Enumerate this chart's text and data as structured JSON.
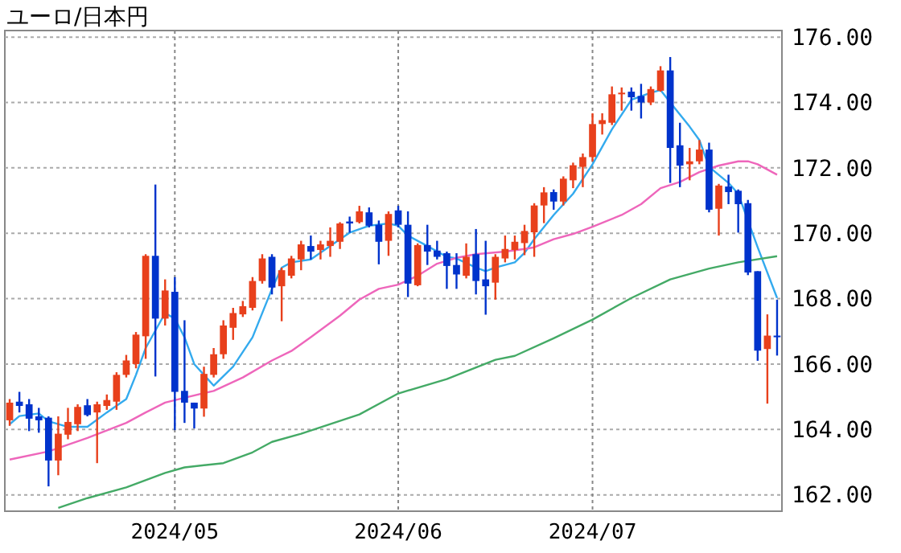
{
  "chart_data": {
    "type": "candlestick",
    "title": "ユーロ/日本円",
    "categories": [
      null,
      null,
      null,
      null,
      null,
      null,
      null,
      null,
      null,
      null,
      null,
      null,
      null,
      null,
      null,
      null,
      null,
      "2024/05",
      null,
      null,
      null,
      null,
      null,
      null,
      null,
      null,
      null,
      null,
      null,
      null,
      null,
      null,
      null,
      null,
      null,
      null,
      null,
      null,
      null,
      null,
      "2024/06",
      null,
      null,
      null,
      null,
      null,
      null,
      null,
      null,
      null,
      null,
      null,
      null,
      null,
      null,
      null,
      null,
      null,
      null,
      null,
      "2024/07",
      null,
      null,
      null,
      null,
      null,
      null,
      null,
      null,
      null,
      null,
      null,
      null,
      null,
      null,
      null,
      null,
      null,
      null,
      null
    ],
    "ohlc": [
      [
        164.28,
        164.93,
        164.11,
        164.82
      ],
      [
        164.85,
        165.15,
        164.52,
        164.72
      ],
      [
        164.77,
        164.93,
        163.95,
        164.33
      ],
      [
        164.4,
        164.66,
        163.9,
        164.28
      ],
      [
        164.36,
        164.4,
        162.26,
        163.05
      ],
      [
        163.05,
        164.4,
        162.6,
        163.87
      ],
      [
        163.84,
        164.66,
        163.7,
        164.23
      ],
      [
        164.16,
        164.77,
        163.95,
        164.69
      ],
      [
        164.74,
        164.93,
        164.4,
        164.44
      ],
      [
        164.52,
        164.85,
        162.97,
        164.77
      ],
      [
        164.72,
        165.07,
        164.6,
        164.9
      ],
      [
        164.85,
        165.75,
        164.6,
        165.67
      ],
      [
        165.67,
        166.28,
        165.59,
        166.11
      ],
      [
        166.0,
        166.98,
        165.87,
        166.9
      ],
      [
        166.85,
        169.36,
        166.16,
        169.31
      ],
      [
        169.31,
        171.49,
        165.62,
        167.39
      ],
      [
        167.39,
        168.59,
        167.18,
        168.25
      ],
      [
        168.21,
        168.66,
        163.98,
        165.15
      ],
      [
        165.18,
        167.34,
        164.2,
        164.82
      ],
      [
        164.82,
        164.82,
        164.03,
        164.64
      ],
      [
        164.64,
        165.92,
        164.39,
        165.7
      ],
      [
        165.67,
        166.49,
        165.59,
        166.3
      ],
      [
        166.3,
        167.34,
        166.16,
        167.18
      ],
      [
        167.11,
        167.72,
        166.74,
        167.56
      ],
      [
        167.52,
        167.93,
        167.44,
        167.77
      ],
      [
        167.72,
        168.66,
        167.64,
        168.54
      ],
      [
        168.54,
        169.36,
        168.46,
        169.23
      ],
      [
        169.28,
        169.36,
        168.13,
        168.34
      ],
      [
        168.38,
        168.95,
        167.31,
        168.87
      ],
      [
        168.7,
        169.31,
        168.62,
        169.23
      ],
      [
        169.2,
        169.77,
        168.87,
        169.66
      ],
      [
        169.61,
        169.93,
        169.2,
        169.44
      ],
      [
        169.49,
        169.77,
        169.2,
        169.66
      ],
      [
        169.61,
        170.18,
        169.28,
        169.77
      ],
      [
        169.74,
        170.34,
        169.52,
        170.3
      ],
      [
        170.36,
        170.51,
        170.02,
        170.3
      ],
      [
        170.34,
        170.84,
        170.3,
        170.67
      ],
      [
        170.64,
        170.79,
        170.18,
        170.23
      ],
      [
        170.26,
        170.39,
        169.05,
        169.74
      ],
      [
        169.77,
        170.67,
        169.31,
        170.59
      ],
      [
        170.7,
        170.84,
        170.18,
        170.26
      ],
      [
        170.26,
        170.67,
        168.05,
        168.46
      ],
      [
        168.41,
        169.69,
        168.38,
        169.64
      ],
      [
        169.64,
        170.26,
        169.03,
        169.44
      ],
      [
        169.47,
        169.77,
        169.2,
        169.28
      ],
      [
        169.39,
        169.44,
        168.3,
        169.0
      ],
      [
        169.03,
        169.39,
        168.3,
        168.74
      ],
      [
        168.7,
        169.69,
        168.62,
        169.28
      ],
      [
        169.36,
        170.13,
        168.13,
        168.54
      ],
      [
        168.59,
        169.77,
        167.51,
        168.38
      ],
      [
        168.49,
        169.36,
        167.97,
        169.28
      ],
      [
        169.23,
        169.93,
        169.11,
        169.52
      ],
      [
        169.49,
        169.93,
        169.2,
        169.74
      ],
      [
        169.7,
        170.26,
        169.33,
        170.07
      ],
      [
        170.03,
        170.92,
        169.28,
        170.85
      ],
      [
        170.85,
        171.41,
        170.31,
        171.25
      ],
      [
        171.26,
        171.34,
        170.72,
        170.97
      ],
      [
        170.97,
        171.74,
        170.85,
        171.67
      ],
      [
        171.62,
        172.16,
        171.38,
        172.08
      ],
      [
        172.03,
        172.44,
        171.41,
        172.33
      ],
      [
        172.33,
        173.67,
        172.2,
        173.34
      ],
      [
        173.34,
        173.67,
        173.02,
        173.46
      ],
      [
        173.38,
        174.49,
        173.31,
        174.25
      ],
      [
        174.25,
        174.46,
        173.75,
        174.3
      ],
      [
        174.33,
        174.46,
        173.75,
        174.16
      ],
      [
        174.2,
        174.57,
        173.51,
        174.0
      ],
      [
        174.0,
        174.49,
        173.92,
        174.41
      ],
      [
        174.36,
        175.11,
        174.33,
        174.98
      ],
      [
        174.98,
        175.39,
        171.54,
        172.61
      ],
      [
        172.69,
        173.38,
        171.41,
        172.07
      ],
      [
        172.11,
        172.61,
        171.62,
        172.2
      ],
      [
        172.2,
        172.85,
        172.11,
        172.56
      ],
      [
        172.56,
        172.77,
        170.64,
        170.72
      ],
      [
        170.75,
        171.51,
        169.93,
        171.46
      ],
      [
        171.43,
        171.79,
        170.89,
        171.26
      ],
      [
        171.3,
        171.34,
        170.02,
        170.89
      ],
      [
        170.92,
        171.02,
        168.72,
        168.8
      ],
      [
        168.84,
        168.84,
        166.1,
        166.41
      ],
      [
        166.46,
        167.52,
        164.79,
        166.87
      ],
      [
        166.87,
        167.97,
        166.26,
        166.84
      ]
    ],
    "colors": [
      "#e8401c",
      "#0033cc",
      "#0033cc",
      "#0033cc",
      "#0033cc",
      "#e8401c",
      "#e8401c",
      "#e8401c",
      "#0033cc",
      "#e8401c",
      "#e8401c",
      "#e8401c",
      "#e8401c",
      "#e8401c",
      "#e8401c",
      "#0033cc",
      "#e8401c",
      "#0033cc",
      "#0033cc",
      "#0033cc",
      "#e8401c",
      "#e8401c",
      "#e8401c",
      "#e8401c",
      "#e8401c",
      "#e8401c",
      "#e8401c",
      "#0033cc",
      "#e8401c",
      "#e8401c",
      "#e8401c",
      "#0033cc",
      "#e8401c",
      "#e8401c",
      "#e8401c",
      "#0033cc",
      "#e8401c",
      "#0033cc",
      "#0033cc",
      "#e8401c",
      "#0033cc",
      "#0033cc",
      "#e8401c",
      "#0033cc",
      "#0033cc",
      "#0033cc",
      "#0033cc",
      "#e8401c",
      "#0033cc",
      "#0033cc",
      "#e8401c",
      "#e8401c",
      "#e8401c",
      "#e8401c",
      "#e8401c",
      "#e8401c",
      "#0033cc",
      "#e8401c",
      "#e8401c",
      "#e8401c",
      "#e8401c",
      "#e8401c",
      "#e8401c",
      "#e8401c",
      "#0033cc",
      "#0033cc",
      "#e8401c",
      "#e8401c",
      "#0033cc",
      "#0033cc",
      "#e8401c",
      "#e8401c",
      "#0033cc",
      "#e8401c",
      "#0033cc",
      "#0033cc",
      "#0033cc",
      "#0033cc",
      "#e8401c",
      "#0033cc"
    ],
    "series": [
      {
        "type": "line",
        "color": "#33aaee",
        "values": [
          164.16,
          164.41,
          null,
          164.49,
          164.25,
          null,
          164.08,
          null,
          164.08,
          null,
          164.52,
          null,
          164.93,
          165.67,
          166.49,
          null,
          167.56,
          167.39,
          166.82,
          166.0,
          null,
          165.34,
          null,
          165.92,
          null,
          166.82,
          null,
          168.3,
          168.95,
          169.11,
          null,
          169.2,
          null,
          169.61,
          null,
          170.02,
          null,
          170.23,
          null,
          170.3,
          170.23,
          169.93,
          null,
          169.61,
          null,
          169.28,
          169.23,
          null,
          168.95,
          168.84,
          168.95,
          null,
          169.11,
          169.4,
          169.82,
          null,
          170.56,
          null,
          171.21,
          null,
          172.11,
          null,
          173.18,
          null,
          174.08,
          null,
          174.3,
          174.38,
          174.0,
          null,
          173.26,
          172.85,
          172.03,
          null,
          171.54,
          171.21,
          null,
          169.57,
          null,
          168.02
        ]
      },
      {
        "type": "line",
        "color": "#ee66bb",
        "values": [
          163.08,
          null,
          null,
          null,
          163.33,
          null,
          null,
          null,
          163.74,
          null,
          null,
          null,
          164.2,
          null,
          164.52,
          null,
          164.82,
          null,
          164.97,
          null,
          null,
          165.18,
          null,
          null,
          165.59,
          null,
          null,
          166.11,
          null,
          166.4,
          null,
          166.82,
          null,
          null,
          167.48,
          null,
          167.97,
          null,
          168.3,
          null,
          168.43,
          null,
          168.7,
          null,
          169.07,
          null,
          169.25,
          null,
          169.36,
          null,
          null,
          169.44,
          null,
          169.52,
          169.57,
          null,
          169.82,
          null,
          169.98,
          null,
          170.2,
          null,
          null,
          170.56,
          null,
          170.89,
          null,
          171.38,
          null,
          171.57,
          null,
          171.87,
          null,
          172.07,
          null,
          172.2,
          172.2,
          172.11,
          null,
          171.79
        ]
      },
      {
        "type": "line",
        "color": "#44aa66",
        "values": [
          null,
          null,
          null,
          null,
          null,
          161.6,
          null,
          null,
          161.9,
          null,
          null,
          null,
          162.23,
          null,
          null,
          null,
          162.67,
          null,
          162.84,
          null,
          null,
          null,
          162.97,
          null,
          null,
          163.3,
          null,
          163.62,
          null,
          null,
          163.87,
          null,
          null,
          null,
          null,
          null,
          164.46,
          null,
          null,
          null,
          165.1,
          null,
          null,
          null,
          null,
          165.54,
          null,
          null,
          null,
          null,
          166.13,
          null,
          166.25,
          null,
          null,
          null,
          166.79,
          null,
          null,
          null,
          167.36,
          null,
          null,
          null,
          168.02,
          null,
          null,
          null,
          168.59,
          null,
          null,
          null,
          168.92,
          null,
          null,
          169.11,
          null,
          null,
          null,
          169.3
        ]
      }
    ],
    "ylim": [
      161.5,
      176.2
    ],
    "yticks": [
      {
        "value": 162,
        "label": "162.00"
      },
      {
        "value": 164,
        "label": "164.00"
      },
      {
        "value": 166,
        "label": "166.00"
      },
      {
        "value": 168,
        "label": "168.00"
      },
      {
        "value": 170,
        "label": "170.00"
      },
      {
        "value": 172,
        "label": "172.00"
      },
      {
        "value": 174,
        "label": "174.00"
      },
      {
        "value": 176,
        "label": "176.00"
      }
    ],
    "grid": true
  }
}
